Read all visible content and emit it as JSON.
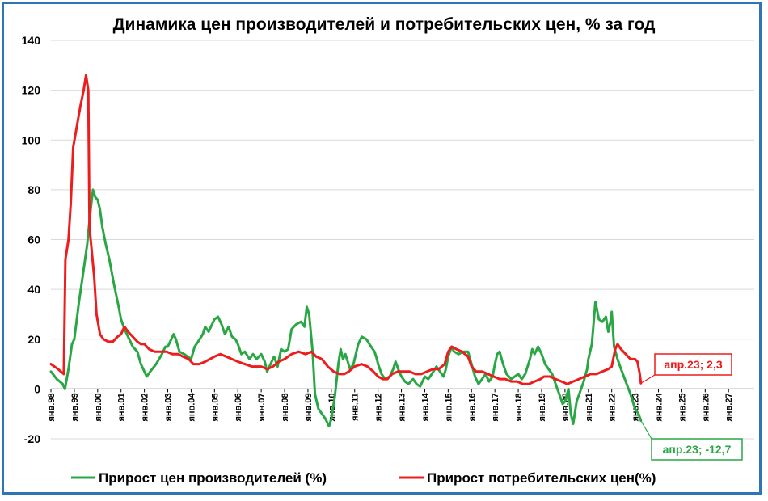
{
  "chart_data": {
    "type": "line",
    "title": "Динамика цен производителей и потребительских цен, % за год",
    "xlabel": "",
    "ylabel": "",
    "ylim": [
      -20,
      140
    ],
    "yticks": [
      140,
      120,
      100,
      80,
      60,
      40,
      20,
      0,
      -20
    ],
    "x_ticks": [
      "янв.98",
      "янв.99",
      "янв.00",
      "янв.01",
      "янв.02",
      "янв.03",
      "янв.04",
      "янв.05",
      "янв.06",
      "янв.07",
      "янв.08",
      "янв.09",
      "янв.10",
      "янв.11",
      "янв.12",
      "янв.13",
      "янв.14",
      "янв.15",
      "янв.16",
      "янв.17",
      "янв.18",
      "янв.19",
      "янв.20",
      "янв.21",
      "янв.22",
      "янв.23",
      "янв.24",
      "янв.25",
      "янв.26",
      "янв.27"
    ],
    "grid": true,
    "legend_position": "bottom",
    "series": [
      {
        "name": "Прирост цен производителей (%)",
        "color": "#2aa745",
        "points": [
          [
            1998.0,
            7
          ],
          [
            1998.25,
            4
          ],
          [
            1998.5,
            2
          ],
          [
            1998.6,
            0
          ],
          [
            1998.75,
            8
          ],
          [
            1998.9,
            18
          ],
          [
            1999.0,
            20
          ],
          [
            1999.2,
            35
          ],
          [
            1999.4,
            48
          ],
          [
            1999.55,
            58
          ],
          [
            1999.7,
            72
          ],
          [
            1999.8,
            80
          ],
          [
            1999.9,
            77
          ],
          [
            2000.0,
            76
          ],
          [
            2000.1,
            72
          ],
          [
            2000.2,
            65
          ],
          [
            2000.35,
            58
          ],
          [
            2000.5,
            52
          ],
          [
            2000.7,
            42
          ],
          [
            2000.9,
            33
          ],
          [
            2001.0,
            28
          ],
          [
            2001.15,
            24
          ],
          [
            2001.3,
            21
          ],
          [
            2001.5,
            17
          ],
          [
            2001.7,
            15
          ],
          [
            2001.85,
            10
          ],
          [
            2002.0,
            7
          ],
          [
            2002.1,
            5
          ],
          [
            2002.25,
            7
          ],
          [
            2002.5,
            10
          ],
          [
            2002.75,
            14
          ],
          [
            2002.9,
            17
          ],
          [
            2003.0,
            17
          ],
          [
            2003.15,
            20
          ],
          [
            2003.25,
            22
          ],
          [
            2003.35,
            20
          ],
          [
            2003.5,
            15
          ],
          [
            2003.7,
            14
          ],
          [
            2003.85,
            13
          ],
          [
            2004.0,
            12
          ],
          [
            2004.15,
            17
          ],
          [
            2004.3,
            19
          ],
          [
            2004.5,
            22
          ],
          [
            2004.6,
            25
          ],
          [
            2004.75,
            23
          ],
          [
            2004.9,
            26
          ],
          [
            2005.0,
            28
          ],
          [
            2005.15,
            29
          ],
          [
            2005.3,
            26
          ],
          [
            2005.45,
            22
          ],
          [
            2005.6,
            25
          ],
          [
            2005.75,
            21
          ],
          [
            2005.9,
            20
          ],
          [
            2006.0,
            18
          ],
          [
            2006.15,
            14
          ],
          [
            2006.3,
            15
          ],
          [
            2006.5,
            12
          ],
          [
            2006.65,
            14
          ],
          [
            2006.8,
            12
          ],
          [
            2007.0,
            14
          ],
          [
            2007.15,
            11
          ],
          [
            2007.25,
            7
          ],
          [
            2007.4,
            10
          ],
          [
            2007.55,
            13
          ],
          [
            2007.7,
            9
          ],
          [
            2007.85,
            16
          ],
          [
            2008.0,
            15
          ],
          [
            2008.15,
            16
          ],
          [
            2008.3,
            24
          ],
          [
            2008.5,
            26
          ],
          [
            2008.7,
            27
          ],
          [
            2008.85,
            25
          ],
          [
            2008.95,
            33
          ],
          [
            2009.05,
            30
          ],
          [
            2009.2,
            15
          ],
          [
            2009.3,
            -2
          ],
          [
            2009.45,
            -8
          ],
          [
            2009.6,
            -10
          ],
          [
            2009.75,
            -12
          ],
          [
            2009.9,
            -15
          ],
          [
            2010.0,
            -12
          ],
          [
            2010.15,
            -3
          ],
          [
            2010.3,
            10
          ],
          [
            2010.4,
            16
          ],
          [
            2010.5,
            12
          ],
          [
            2010.6,
            14
          ],
          [
            2010.8,
            8
          ],
          [
            2010.95,
            10
          ],
          [
            2011.0,
            12
          ],
          [
            2011.15,
            18
          ],
          [
            2011.3,
            21
          ],
          [
            2011.5,
            20
          ],
          [
            2011.7,
            17
          ],
          [
            2011.85,
            15
          ],
          [
            2011.95,
            12
          ],
          [
            2012.0,
            10
          ],
          [
            2012.15,
            6
          ],
          [
            2012.3,
            4
          ],
          [
            2012.5,
            5
          ],
          [
            2012.65,
            8
          ],
          [
            2012.75,
            11
          ],
          [
            2012.9,
            7
          ],
          [
            2013.0,
            5
          ],
          [
            2013.15,
            3
          ],
          [
            2013.3,
            2
          ],
          [
            2013.5,
            4
          ],
          [
            2013.65,
            2
          ],
          [
            2013.8,
            1
          ],
          [
            2013.95,
            4
          ],
          [
            2014.0,
            5
          ],
          [
            2014.15,
            4
          ],
          [
            2014.3,
            6
          ],
          [
            2014.5,
            9
          ],
          [
            2014.65,
            7
          ],
          [
            2014.8,
            5
          ],
          [
            2014.9,
            8
          ],
          [
            2015.0,
            13
          ],
          [
            2015.15,
            17
          ],
          [
            2015.25,
            15
          ],
          [
            2015.45,
            14
          ],
          [
            2015.65,
            15
          ],
          [
            2015.85,
            15
          ],
          [
            2016.0,
            10
          ],
          [
            2016.15,
            5
          ],
          [
            2016.3,
            2
          ],
          [
            2016.45,
            4
          ],
          [
            2016.6,
            6
          ],
          [
            2016.75,
            3
          ],
          [
            2016.9,
            5
          ],
          [
            2017.0,
            10
          ],
          [
            2017.1,
            14
          ],
          [
            2017.2,
            15
          ],
          [
            2017.35,
            10
          ],
          [
            2017.5,
            6
          ],
          [
            2017.7,
            4
          ],
          [
            2017.85,
            5
          ],
          [
            2018.0,
            6
          ],
          [
            2018.15,
            4
          ],
          [
            2018.3,
            6
          ],
          [
            2018.5,
            12
          ],
          [
            2018.6,
            16
          ],
          [
            2018.7,
            14
          ],
          [
            2018.85,
            17
          ],
          [
            2019.0,
            14
          ],
          [
            2019.15,
            10
          ],
          [
            2019.3,
            8
          ],
          [
            2019.45,
            6
          ],
          [
            2019.6,
            2
          ],
          [
            2019.75,
            -2
          ],
          [
            2019.9,
            -6
          ],
          [
            2020.0,
            -5
          ],
          [
            2020.15,
            0
          ],
          [
            2020.25,
            -10
          ],
          [
            2020.35,
            -14
          ],
          [
            2020.5,
            -5
          ],
          [
            2020.65,
            -1
          ],
          [
            2020.8,
            3
          ],
          [
            2020.95,
            8
          ],
          [
            2021.0,
            12
          ],
          [
            2021.15,
            18
          ],
          [
            2021.3,
            35
          ],
          [
            2021.45,
            28
          ],
          [
            2021.6,
            27
          ],
          [
            2021.75,
            29
          ],
          [
            2021.85,
            23
          ],
          [
            2021.95,
            27
          ],
          [
            2022.0,
            31
          ],
          [
            2022.1,
            17
          ],
          [
            2022.25,
            12
          ],
          [
            2022.4,
            8
          ],
          [
            2022.6,
            3
          ],
          [
            2022.8,
            -2
          ],
          [
            2023.0,
            -8
          ],
          [
            2023.15,
            -10
          ],
          [
            2023.25,
            -12.7
          ]
        ]
      },
      {
        "name": "Прирост потребительских цен(%)",
        "color": "#ee1c1c",
        "points": [
          [
            1998.0,
            10
          ],
          [
            1998.3,
            8
          ],
          [
            1998.55,
            6
          ],
          [
            1998.62,
            52
          ],
          [
            1998.75,
            60
          ],
          [
            1998.85,
            75
          ],
          [
            1998.95,
            97
          ],
          [
            1999.1,
            105
          ],
          [
            1999.25,
            113
          ],
          [
            1999.4,
            120
          ],
          [
            1999.5,
            126
          ],
          [
            1999.6,
            120
          ],
          [
            1999.65,
            65
          ],
          [
            1999.75,
            55
          ],
          [
            1999.85,
            45
          ],
          [
            1999.95,
            30
          ],
          [
            2000.1,
            22
          ],
          [
            2000.25,
            20
          ],
          [
            2000.45,
            19
          ],
          [
            2000.65,
            19
          ],
          [
            2000.85,
            21
          ],
          [
            2001.0,
            22
          ],
          [
            2001.15,
            25
          ],
          [
            2001.3,
            23
          ],
          [
            2001.5,
            21
          ],
          [
            2001.7,
            19
          ],
          [
            2001.85,
            18
          ],
          [
            2002.0,
            18
          ],
          [
            2002.2,
            16
          ],
          [
            2002.45,
            15
          ],
          [
            2002.7,
            15
          ],
          [
            2002.95,
            15
          ],
          [
            2003.2,
            14
          ],
          [
            2003.45,
            14
          ],
          [
            2003.65,
            13
          ],
          [
            2003.9,
            12
          ],
          [
            2004.1,
            10
          ],
          [
            2004.35,
            10
          ],
          [
            2004.6,
            11
          ],
          [
            2004.8,
            12
          ],
          [
            2005.0,
            13
          ],
          [
            2005.25,
            14
          ],
          [
            2005.5,
            13
          ],
          [
            2005.75,
            12
          ],
          [
            2006.0,
            11
          ],
          [
            2006.3,
            10
          ],
          [
            2006.6,
            9
          ],
          [
            2006.85,
            9
          ],
          [
            2007.0,
            9
          ],
          [
            2007.25,
            8
          ],
          [
            2007.5,
            9
          ],
          [
            2007.75,
            11
          ],
          [
            2008.0,
            12
          ],
          [
            2008.3,
            14
          ],
          [
            2008.6,
            15
          ],
          [
            2008.9,
            14
          ],
          [
            2009.15,
            15
          ],
          [
            2009.35,
            13
          ],
          [
            2009.6,
            12
          ],
          [
            2009.85,
            9
          ],
          [
            2010.1,
            7
          ],
          [
            2010.35,
            6
          ],
          [
            2010.55,
            6
          ],
          [
            2010.75,
            7
          ],
          [
            2011.0,
            9
          ],
          [
            2011.3,
            10
          ],
          [
            2011.55,
            9
          ],
          [
            2011.8,
            7
          ],
          [
            2012.0,
            5
          ],
          [
            2012.2,
            4
          ],
          [
            2012.4,
            4
          ],
          [
            2012.6,
            6
          ],
          [
            2012.85,
            7
          ],
          [
            2013.1,
            7
          ],
          [
            2013.35,
            7
          ],
          [
            2013.6,
            6
          ],
          [
            2013.85,
            6
          ],
          [
            2014.1,
            7
          ],
          [
            2014.35,
            8
          ],
          [
            2014.6,
            8
          ],
          [
            2014.85,
            10
          ],
          [
            2015.0,
            15
          ],
          [
            2015.15,
            17
          ],
          [
            2015.35,
            16
          ],
          [
            2015.6,
            15
          ],
          [
            2015.85,
            13
          ],
          [
            2016.0,
            9
          ],
          [
            2016.2,
            7
          ],
          [
            2016.45,
            7
          ],
          [
            2016.7,
            6
          ],
          [
            2016.95,
            5
          ],
          [
            2017.2,
            4
          ],
          [
            2017.45,
            4
          ],
          [
            2017.7,
            3
          ],
          [
            2017.95,
            3
          ],
          [
            2018.2,
            2
          ],
          [
            2018.45,
            2
          ],
          [
            2018.7,
            3
          ],
          [
            2018.95,
            4
          ],
          [
            2019.1,
            5
          ],
          [
            2019.35,
            5
          ],
          [
            2019.6,
            4
          ],
          [
            2019.85,
            3
          ],
          [
            2020.1,
            2
          ],
          [
            2020.35,
            3
          ],
          [
            2020.6,
            4
          ],
          [
            2020.85,
            5
          ],
          [
            2021.1,
            6
          ],
          [
            2021.35,
            6
          ],
          [
            2021.6,
            7
          ],
          [
            2021.85,
            8
          ],
          [
            2022.0,
            9
          ],
          [
            2022.15,
            16
          ],
          [
            2022.25,
            18
          ],
          [
            2022.4,
            16
          ],
          [
            2022.6,
            14
          ],
          [
            2022.8,
            12
          ],
          [
            2023.0,
            12
          ],
          [
            2023.1,
            11
          ],
          [
            2023.2,
            6
          ],
          [
            2023.25,
            2.3
          ]
        ]
      }
    ],
    "annotations": [
      {
        "text": "апр.23; 2,3",
        "series": 1,
        "x": 2023.25,
        "y": 2.3,
        "color": "#ee1c1c"
      },
      {
        "text": "апр.23; -12,7",
        "series": 0,
        "x": 2023.25,
        "y": -12.7,
        "color": "#2aa745"
      }
    ]
  }
}
